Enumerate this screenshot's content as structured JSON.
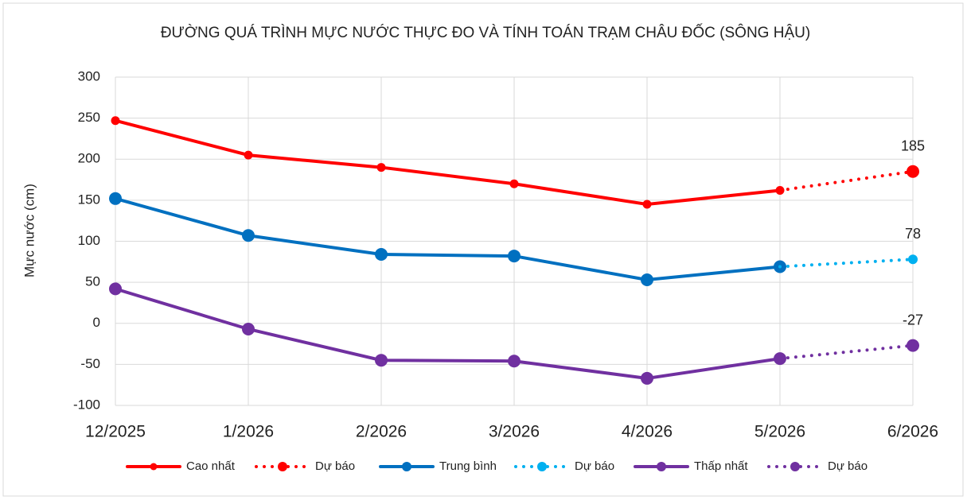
{
  "chart_data": {
    "type": "line",
    "title": "ĐƯỜNG QUÁ TRÌNH MỰC NƯỚC THỰC ĐO VÀ TÍNH TOÁN TRẠM CHÂU ĐỐC (SÔNG HẬU)",
    "y_label": "Mực nước (cm)",
    "categories": [
      "12/2025",
      "1/2026",
      "2/2026",
      "3/2026",
      "4/2026",
      "5/2026",
      "6/2026"
    ],
    "series": [
      {
        "name": "Cao nhất",
        "color": "#ff0000",
        "style": "solid",
        "values": [
          247,
          205,
          190,
          170,
          145,
          162,
          null
        ]
      },
      {
        "name": "Dự báo",
        "color": "#ff0000",
        "style": "dotted",
        "values": [
          null,
          null,
          null,
          null,
          null,
          162,
          185
        ]
      },
      {
        "name": "Trung bình",
        "color": "#0070c0",
        "style": "solid",
        "values": [
          152,
          107,
          84,
          82,
          53,
          69,
          null
        ]
      },
      {
        "name": "Dự báo",
        "color": "#00b0f0",
        "style": "dotted",
        "values": [
          null,
          null,
          null,
          null,
          null,
          69,
          78
        ]
      },
      {
        "name": "Thấp nhất",
        "color": "#7030a0",
        "style": "solid",
        "values": [
          42,
          -7,
          -45,
          -46,
          -67,
          -43,
          null
        ]
      },
      {
        "name": "Dự báo",
        "color": "#7030a0",
        "style": "dotted",
        "values": [
          null,
          null,
          null,
          null,
          null,
          -43,
          -27
        ]
      }
    ],
    "ylim": [
      -100,
      300
    ],
    "yticks": [
      -100,
      -50,
      0,
      50,
      100,
      150,
      200,
      250,
      300
    ],
    "grid": true,
    "legend": "bottom"
  }
}
